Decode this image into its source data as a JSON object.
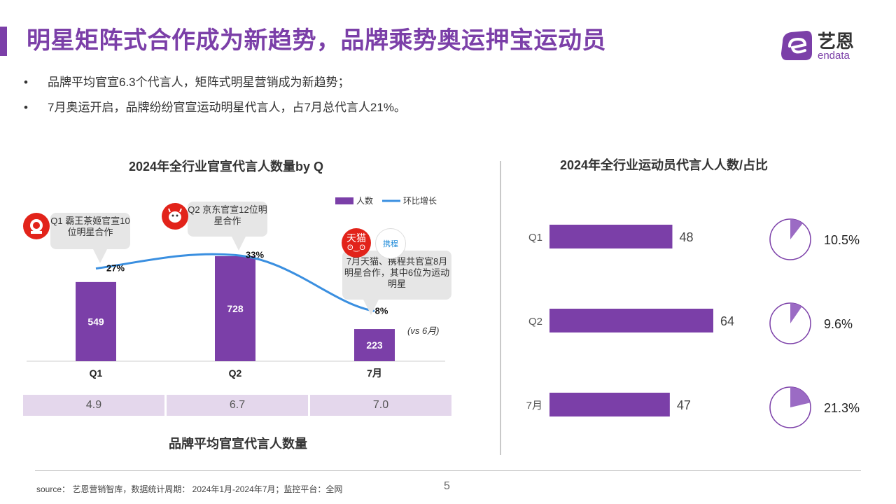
{
  "title": "明星矩阵式合作成为新趋势，品牌乘势奥运押宝运动员",
  "logo": {
    "cn": "艺恩",
    "en": "endata",
    "icon": "endata-logo-icon"
  },
  "bullets": [
    "品牌平均官宣6.3个代言人，矩阵式明星营销成为新趋势；",
    "7月奥运开启，品牌纷纷官宣运动明星代言人，占7月总代言人21%。"
  ],
  "left_chart_title": "2024年全行业官宣代言人数量by Q",
  "right_chart_title": "2024年全行业运动员代言人人数/占比",
  "avg_label": "品牌平均官宣代言人数量",
  "avg_values": [
    "4.9",
    "6.7",
    "7.0"
  ],
  "callouts": {
    "q1": {
      "text": "Q1 霸王茶姬官宣10位明星合作",
      "icon": "chagee-logo-icon"
    },
    "q2": {
      "text": "Q2 京东官宣12位明星合作",
      "icon": "jd-logo-icon"
    },
    "jul": {
      "text": "7月天猫、携程共官宣8月明星合作，其中6位为运动明星",
      "icons": [
        "tmall-logo-icon",
        "ctrip-logo-icon"
      ],
      "tmall_label": "天猫",
      "ctrip_label": "携程"
    }
  },
  "vs_note": "(vs 6月)",
  "source": "source： 艺恩营销智库，数据统计周期： 2024年1月-2024年7月；监控平台：全网",
  "page_number": "5",
  "colors": {
    "accent": "#7B3FA8",
    "line": "#3A8FE0",
    "avg_fill": "#E4D7EC",
    "pie_slice": "#9B6BC4"
  },
  "chart_data": [
    {
      "type": "bar",
      "title": "2024年全行业官宣代言人数量by Q",
      "categories": [
        "Q1",
        "Q2",
        "7月"
      ],
      "series": [
        {
          "name": "人数",
          "type": "bar",
          "values": [
            549,
            728,
            223
          ]
        },
        {
          "name": "环比增长",
          "type": "line",
          "values": [
            27,
            33,
            8
          ],
          "labels": [
            "27%",
            "33%",
            "8%"
          ],
          "unit": "%"
        }
      ],
      "legend": "top-right"
    },
    {
      "type": "bar",
      "orientation": "horizontal",
      "title": "2024年全行业运动员代言人人数/占比",
      "categories": [
        "Q1",
        "Q2",
        "7月"
      ],
      "values": [
        48,
        64,
        47
      ],
      "xlim": [
        0,
        64
      ]
    },
    {
      "type": "pie",
      "title": "2024年全行业运动员代言人人数/占比",
      "categories": [
        "Q1",
        "Q2",
        "7月"
      ],
      "values": [
        10.5,
        9.6,
        21.3
      ],
      "labels": [
        "10.5%",
        "9.6%",
        "21.3%"
      ]
    }
  ]
}
